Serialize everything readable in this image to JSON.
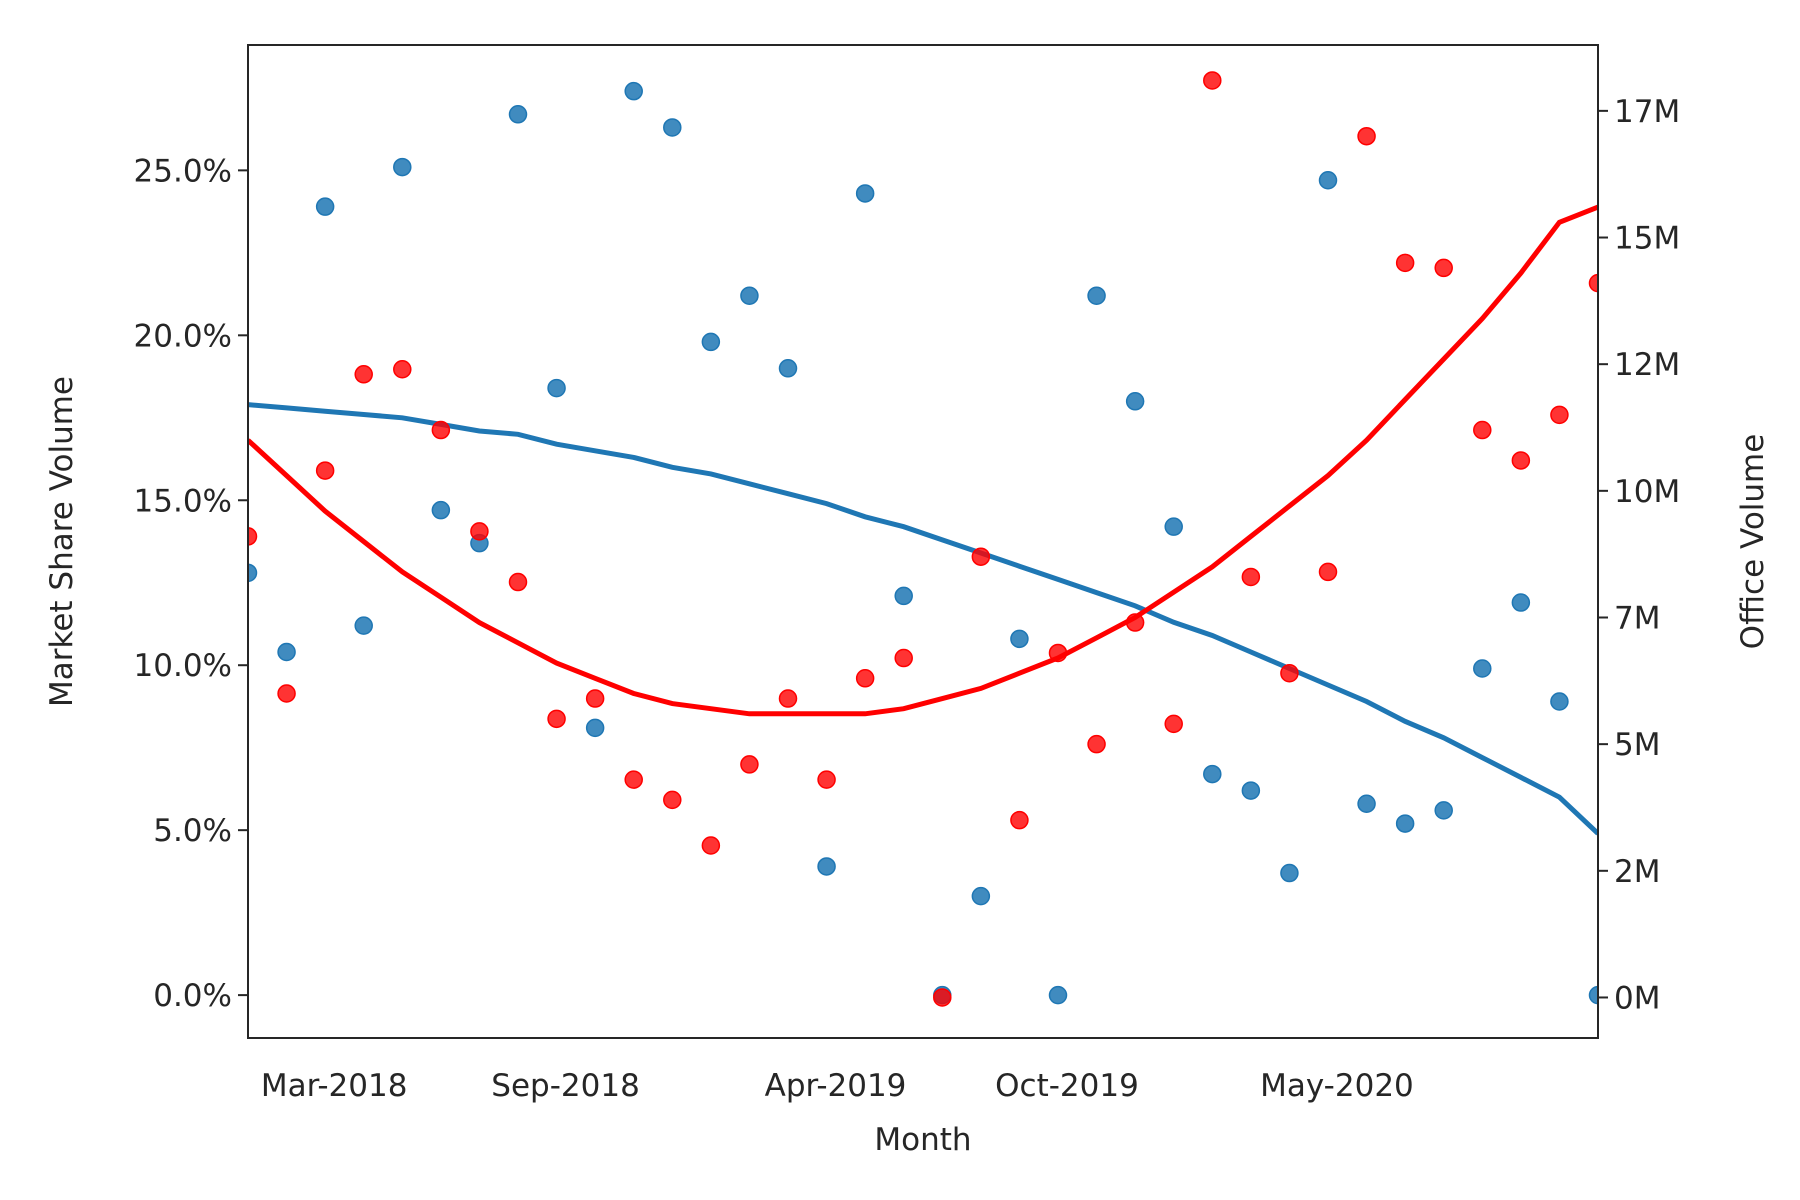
{
  "chart_data": {
    "type": "scatter",
    "xlabel": "Month",
    "ylabel_left": "Market Share Volume",
    "ylabel_right": "Office Volume",
    "x_ticks": [
      "Mar-2018",
      "Sep-2018",
      "Apr-2019",
      "Oct-2019",
      "May-2020"
    ],
    "y_left_ticks": [
      "0.0%",
      "5.0%",
      "10.0%",
      "15.0%",
      "20.0%",
      "25.0%"
    ],
    "y_right_ticks": [
      "0M",
      "2M",
      "5M",
      "7M",
      "10M",
      "12M",
      "15M",
      "17M"
    ],
    "ylim_left": [
      -1.3,
      28.8
    ],
    "ylim_right": [
      -0.8,
      18.8
    ],
    "x_count": 36,
    "series": [
      {
        "name": "Market Share Volume",
        "axis": "left",
        "color": "#1f77b4",
        "values": [
          12.8,
          10.4,
          23.9,
          11.2,
          25.1,
          14.7,
          13.7,
          26.7,
          18.4,
          8.1,
          27.4,
          26.3,
          19.8,
          21.2,
          19.0,
          3.9,
          24.3,
          12.1,
          0.0,
          3.0,
          10.8,
          0.0,
          21.2,
          18.0,
          14.2,
          6.7,
          6.2,
          3.7,
          24.7,
          5.8,
          5.2,
          5.6,
          9.9,
          11.9,
          8.9,
          0.0
        ],
        "trend": [
          17.9,
          17.8,
          17.7,
          17.6,
          17.5,
          17.3,
          17.1,
          17.0,
          16.7,
          16.5,
          16.3,
          16.0,
          15.8,
          15.5,
          15.2,
          14.9,
          14.5,
          14.2,
          13.8,
          13.4,
          13.0,
          12.6,
          12.2,
          11.8,
          11.3,
          10.9,
          10.4,
          9.9,
          9.4,
          8.9,
          8.3,
          7.8,
          7.2,
          6.6,
          6.0,
          4.9
        ]
      },
      {
        "name": "Office Volume",
        "axis": "right",
        "color": "#ff0000",
        "values": [
          9.1,
          6.0,
          10.4,
          12.3,
          12.4,
          11.2,
          9.2,
          8.2,
          5.5,
          5.9,
          4.3,
          3.9,
          3.0,
          4.6,
          5.9,
          4.3,
          6.3,
          6.7,
          0.0,
          8.7,
          3.5,
          6.8,
          5.0,
          7.4,
          5.4,
          18.1,
          8.3,
          6.4,
          8.4,
          17.0,
          14.5,
          14.4,
          11.2,
          10.6,
          11.5,
          14.1
        ]
      }
    ],
    "trend_right": [
      11.0,
      10.3,
      9.6,
      9.0,
      8.4,
      7.9,
      7.4,
      7.0,
      6.6,
      6.3,
      6.0,
      5.8,
      5.7,
      5.6,
      5.6,
      5.6,
      5.6,
      5.7,
      5.9,
      6.1,
      6.4,
      6.7,
      7.1,
      7.5,
      8.0,
      8.5,
      9.1,
      9.7,
      10.3,
      11.0,
      11.8,
      12.6,
      13.4,
      14.3,
      15.3,
      15.6
    ]
  }
}
